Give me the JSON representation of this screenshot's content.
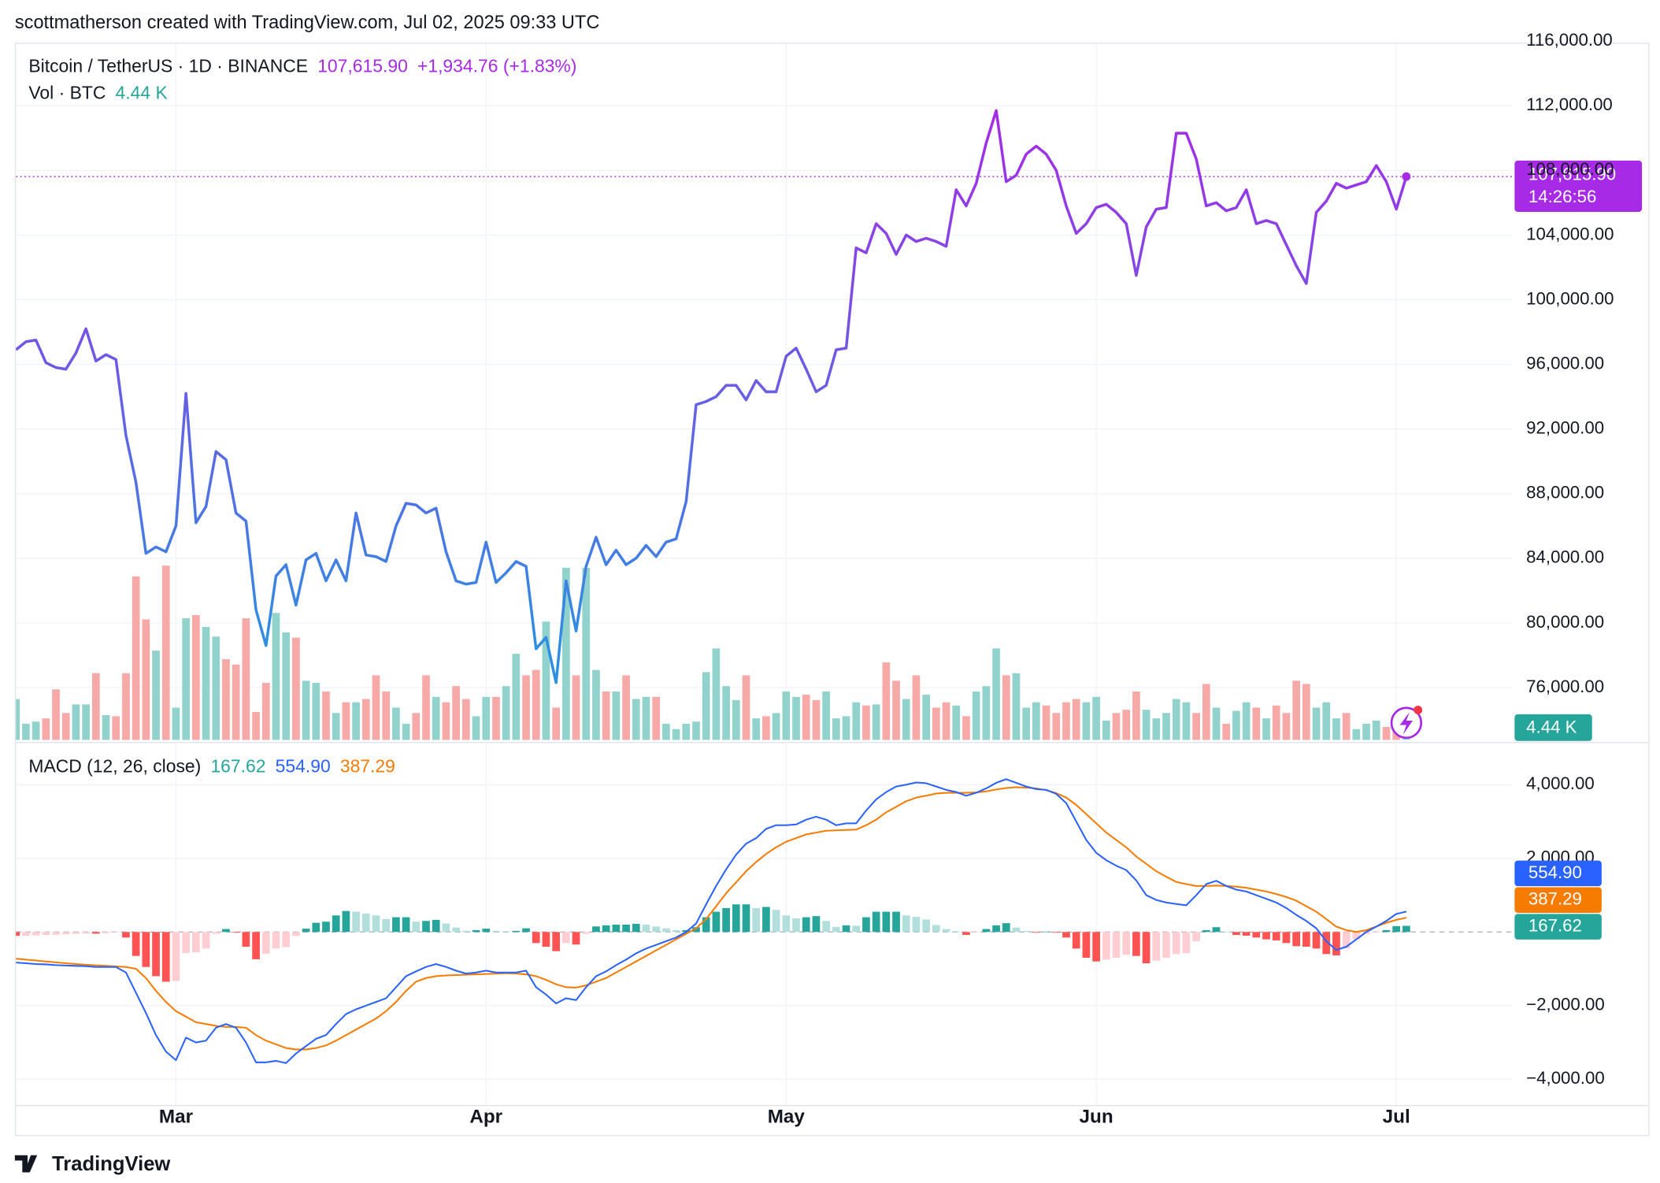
{
  "header": {
    "text": "scottmatherson created with TradingView.com, Jul 02, 2025 09:33 UTC"
  },
  "footer": {
    "text": "TradingView"
  },
  "chart_data": [
    {
      "type": "line",
      "title": "Bitcoin / TetherUS · 1D · BINANCE",
      "last_label": "107,615.90",
      "change_label": "+1,934.76 (+1.83%)",
      "countdown": "14:26:56",
      "color_gradient": [
        "#a72ae6",
        "#2e8fe2"
      ],
      "values": [
        96900,
        97400,
        97500,
        96100,
        95800,
        95700,
        96700,
        98200,
        96200,
        96600,
        96300,
        91600,
        88700,
        84300,
        84700,
        84400,
        86000,
        94200,
        86200,
        87200,
        90600,
        90100,
        86800,
        86300,
        80800,
        78600,
        82900,
        83600,
        81100,
        83900,
        84300,
        82600,
        83900,
        82600,
        86800,
        84200,
        84100,
        83800,
        86000,
        87400,
        87300,
        86800,
        87100,
        84400,
        82600,
        82400,
        82500,
        85000,
        82500,
        83100,
        83800,
        83500,
        78400,
        79100,
        76300,
        82600,
        79500,
        83500,
        85300,
        83600,
        84500,
        83600,
        84000,
        84800,
        84100,
        85000,
        85200,
        87500,
        93500,
        93700,
        94000,
        94700,
        94700,
        93800,
        95000,
        94300,
        94300,
        96500,
        97000,
        95700,
        94300,
        94700,
        96900,
        97000,
        103200,
        102900,
        104700,
        104100,
        102800,
        104000,
        103600,
        103800,
        103600,
        103300,
        106800,
        105800,
        107200,
        109700,
        111700,
        107300,
        107700,
        109000,
        109500,
        109000,
        108000,
        105800,
        104100,
        104700,
        105700,
        105900,
        105400,
        104700,
        101500,
        104500,
        105600,
        105700,
        110300,
        110300,
        108700,
        105800,
        106000,
        105500,
        105700,
        106800,
        104700,
        104900,
        104700,
        103400,
        102100,
        101000,
        105400,
        106100,
        107200,
        106900,
        107100,
        107300,
        108300,
        107300,
        105600,
        107615.9
      ],
      "ylim": [
        72760,
        115900
      ],
      "yticks": [
        {
          "value": 76000,
          "label": "76,000.00"
        },
        {
          "value": 80000,
          "label": "80,000.00"
        },
        {
          "value": 84000,
          "label": "84,000.00"
        },
        {
          "value": 88000,
          "label": "88,000.00"
        },
        {
          "value": 92000,
          "label": "92,000.00"
        },
        {
          "value": 96000,
          "label": "96,000.00"
        },
        {
          "value": 100000,
          "label": "100,000.00"
        },
        {
          "value": 104000,
          "label": "104,000.00"
        },
        {
          "value": 108000,
          "label": "108,000.00"
        },
        {
          "value": 112000,
          "label": "112,000.00"
        },
        {
          "value": 116000,
          "label": "116,000.00"
        }
      ],
      "xticks": [
        {
          "value": 16,
          "label": "Mar"
        },
        {
          "value": 47,
          "label": "Apr"
        },
        {
          "value": 77,
          "label": "May"
        },
        {
          "value": 108,
          "label": "Jun"
        },
        {
          "value": 138,
          "label": "Jul"
        }
      ],
      "grid": true
    },
    {
      "type": "bar",
      "title": "Vol · BTC",
      "last_label": "4.44 K",
      "colors": {
        "up": "#92d2cc",
        "down": "#f7a9a7",
        "label": "#26a69a"
      },
      "values": [
        11.4,
        4.5,
        5.1,
        6,
        14.1,
        7.5,
        9.9,
        9.9,
        18.6,
        6.9,
        6.6,
        18.6,
        45.6,
        33.6,
        24.9,
        48.6,
        9,
        33.9,
        34.8,
        31.5,
        28.8,
        22.5,
        21,
        33.9,
        7.8,
        15.9,
        35.4,
        30,
        28.5,
        16.5,
        15.9,
        13.5,
        7.5,
        10.5,
        10.5,
        11.4,
        18,
        13.5,
        9,
        4.5,
        7.5,
        18,
        12,
        10.5,
        15,
        11.4,
        6.6,
        12,
        12,
        15,
        24,
        18,
        19.5,
        33,
        9,
        48,
        18,
        48,
        19.5,
        13.5,
        13.5,
        18,
        11.4,
        12,
        12,
        4.5,
        3,
        4.5,
        5.1,
        18.9,
        25.5,
        15,
        11.1,
        18,
        6,
        6.6,
        7.5,
        13.5,
        12,
        12.6,
        11.1,
        13.5,
        6,
        6.6,
        10.5,
        9.6,
        9.9,
        21.6,
        16.5,
        11.4,
        18,
        12.6,
        9,
        10.5,
        9.6,
        6.6,
        13.5,
        15,
        25.5,
        18,
        18.6,
        9,
        10.5,
        9.6,
        7.5,
        10.5,
        11.4,
        10.5,
        12,
        5.4,
        7.5,
        8.4,
        13.5,
        8.4,
        6,
        7.5,
        11.4,
        10.5,
        7.5,
        15.6,
        9,
        4.5,
        8.1,
        10.5,
        9,
        6,
        9.6,
        7.5,
        16.5,
        15.6,
        9,
        10.5,
        6,
        7.5,
        3,
        4.5,
        5.4,
        3.6,
        6,
        4.44
      ]
    },
    {
      "type": "macd",
      "title": "MACD (12, 26, close)",
      "histogram": {
        "value_label": "167.62",
        "colors": {
          "up_strong": "#26a69a",
          "up_weak": "#b2dfdb",
          "down_strong": "#ff5252",
          "down_weak": "#ffcdd2"
        },
        "values": [
          -105,
          -100,
          -95,
          -80,
          -75,
          -60,
          -50,
          -40,
          -45,
          -30,
          -15,
          -150,
          -650,
          -950,
          -1200,
          -1350,
          -1330,
          -570,
          -550,
          -450,
          -50,
          80,
          -20,
          -400,
          -740,
          -590,
          -450,
          -410,
          -110,
          90,
          250,
          280,
          450,
          570,
          550,
          500,
          450,
          350,
          400,
          400,
          280,
          300,
          330,
          230,
          120,
          30,
          50,
          90,
          30,
          20,
          30,
          100,
          -300,
          -400,
          -520,
          -300,
          -340,
          -50,
          150,
          180,
          200,
          200,
          220,
          200,
          150,
          100,
          50,
          50,
          130,
          400,
          550,
          650,
          750,
          750,
          650,
          680,
          600,
          450,
          370,
          400,
          430,
          300,
          140,
          180,
          170,
          400,
          550,
          550,
          550,
          450,
          410,
          340,
          190,
          80,
          20,
          -80,
          -10,
          80,
          180,
          240,
          120,
          30,
          -20,
          10,
          -20,
          -150,
          -450,
          -700,
          -800,
          -750,
          -700,
          -620,
          -650,
          -850,
          -780,
          -700,
          -600,
          -575,
          -250,
          50,
          130,
          0,
          -80,
          -100,
          -150,
          -200,
          -230,
          -300,
          -386,
          -400,
          -450,
          -600,
          -635,
          -450,
          -200,
          -50,
          -5,
          50,
          160,
          167.62
        ]
      },
      "macd": {
        "value_label": "554.90",
        "color": "#2962ff",
        "values": [
          -830,
          -850,
          -870,
          -880,
          -900,
          -910,
          -920,
          -930,
          -950,
          -950,
          -950,
          -1100,
          -1650,
          -2200,
          -2800,
          -3250,
          -3480,
          -2870,
          -3000,
          -2950,
          -2600,
          -2500,
          -2600,
          -3000,
          -3540,
          -3540,
          -3500,
          -3560,
          -3300,
          -3100,
          -2900,
          -2800,
          -2500,
          -2230,
          -2100,
          -2000,
          -1900,
          -1800,
          -1500,
          -1200,
          -1070,
          -950,
          -870,
          -950,
          -1050,
          -1130,
          -1100,
          -1050,
          -1100,
          -1100,
          -1100,
          -1050,
          -1500,
          -1700,
          -1940,
          -1800,
          -1850,
          -1500,
          -1200,
          -1070,
          -900,
          -750,
          -580,
          -450,
          -350,
          -250,
          -150,
          0,
          230,
          750,
          1250,
          1700,
          2100,
          2400,
          2550,
          2800,
          2900,
          2900,
          2920,
          3050,
          3130,
          3050,
          2900,
          2950,
          2950,
          3300,
          3600,
          3800,
          3950,
          4000,
          4060,
          4040,
          3950,
          3860,
          3800,
          3700,
          3780,
          3900,
          4050,
          4150,
          4050,
          3950,
          3880,
          3860,
          3750,
          3500,
          3000,
          2500,
          2150,
          1950,
          1800,
          1680,
          1400,
          1000,
          870,
          800,
          760,
          725,
          1000,
          1300,
          1390,
          1250,
          1150,
          1100,
          1000,
          900,
          800,
          650,
          464,
          300,
          100,
          -250,
          -490,
          -400,
          -200,
          0,
          145,
          300,
          490,
          554.9
        ]
      },
      "signal": {
        "value_label": "387.29",
        "color": "#f57c00",
        "values": [
          -725,
          -750,
          -775,
          -800,
          -825,
          -850,
          -870,
          -890,
          -905,
          -920,
          -935,
          -950,
          -1000,
          -1250,
          -1600,
          -1900,
          -2150,
          -2300,
          -2450,
          -2500,
          -2550,
          -2580,
          -2580,
          -2600,
          -2800,
          -2950,
          -3050,
          -3150,
          -3190,
          -3190,
          -3150,
          -3080,
          -2950,
          -2800,
          -2650,
          -2500,
          -2350,
          -2150,
          -1900,
          -1600,
          -1350,
          -1250,
          -1200,
          -1180,
          -1170,
          -1160,
          -1150,
          -1140,
          -1130,
          -1120,
          -1130,
          -1150,
          -1200,
          -1300,
          -1420,
          -1500,
          -1510,
          -1450,
          -1350,
          -1250,
          -1100,
          -950,
          -800,
          -650,
          -500,
          -350,
          -200,
          -50,
          100,
          350,
          700,
          1050,
          1350,
          1650,
          1900,
          2120,
          2300,
          2450,
          2550,
          2650,
          2700,
          2750,
          2760,
          2770,
          2780,
          2900,
          3050,
          3250,
          3400,
          3550,
          3650,
          3700,
          3760,
          3780,
          3780,
          3780,
          3790,
          3820,
          3870,
          3910,
          3930,
          3920,
          3900,
          3850,
          3770,
          3650,
          3450,
          3200,
          2950,
          2700,
          2500,
          2300,
          2050,
          1850,
          1650,
          1500,
          1360,
          1300,
          1250,
          1250,
          1260,
          1250,
          1230,
          1200,
          1150,
          1100,
          1030,
          950,
          850,
          700,
          550,
          350,
          145,
          50,
          0,
          50,
          150,
          250,
          330,
          387.29
        ]
      },
      "ylim": [
        -4700,
        5100
      ],
      "yticks": [
        {
          "value": -4000,
          "label": "−4,000.00"
        },
        {
          "value": -2000,
          "label": "−2,000.00"
        },
        {
          "value": 2000,
          "label": "2,000.00"
        },
        {
          "value": 4000,
          "label": "4,000.00"
        }
      ],
      "grid": true
    }
  ]
}
